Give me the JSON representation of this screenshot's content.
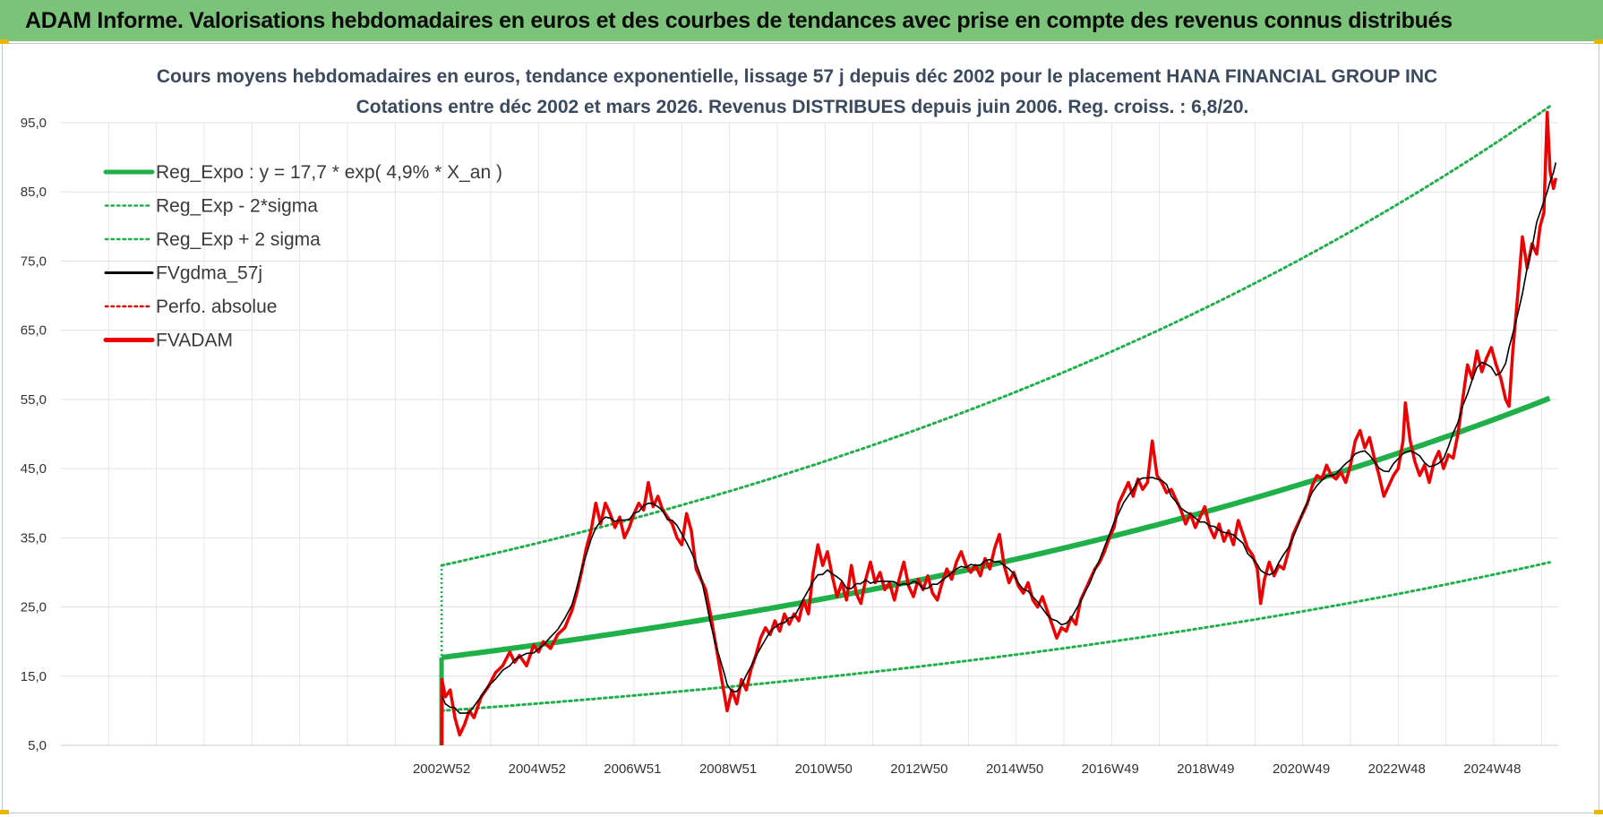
{
  "header": {
    "title": "ADAM Informe. Valorisations hebdomadaires en euros et des courbes de tendances avec prise en compte des revenus connus distribués"
  },
  "colors": {
    "header_bg": "#7cc37a",
    "reg_expo": "#1fb04a",
    "sigma": "#1fb04a",
    "fvgdma": "#000000",
    "perfo": "#e00000",
    "fvadam": "#ee0000"
  },
  "chart_data": {
    "type": "line",
    "title_line1": "Cours moyens hebdomadaires en euros, tendance exponentielle, lissage 57 j depuis déc 2002 pour le placement HANA FINANCIAL GROUP INC",
    "title_line2": "Cotations entre déc 2002 et mars 2026.  Revenus DISTRIBUES depuis juin 2006. Reg. croiss. : 6,8/20.",
    "ylim": [
      5,
      95
    ],
    "yticks": [
      "95,0",
      "85,0",
      "75,0",
      "65,0",
      "55,0",
      "45,0",
      "35,0",
      "25,0",
      "15,0",
      "5,0"
    ],
    "xticks": [
      "2002W52",
      "2004W52",
      "2006W51",
      "2008W51",
      "2010W50",
      "2012W50",
      "2014W50",
      "2016W49",
      "2018W49",
      "2020W49",
      "2022W48",
      "2024W48"
    ],
    "grid": true,
    "legend_position": "top-left",
    "legend": [
      {
        "label": "Reg_Expo : y = 17,7 * exp( 4,9% *  X_an )",
        "style": "solid-thick",
        "color": "#1fb04a"
      },
      {
        "label": "Reg_Exp - 2*sigma",
        "style": "dotted",
        "color": "#1fb04a"
      },
      {
        "label": "Reg_Exp + 2 sigma",
        "style": "dotted",
        "color": "#1fb04a"
      },
      {
        "label": "FVgdma_57j",
        "style": "solid",
        "color": "#000000"
      },
      {
        "label": "Perfo. absolue",
        "style": "dotted",
        "color": "#e00000"
      },
      {
        "label": "FVADAM",
        "style": "solid-thick",
        "color": "#ee0000"
      }
    ],
    "regression": {
      "a": 17.7,
      "rate": 0.049,
      "start_year": 2002.97,
      "end_year": 2026.2
    },
    "band_upper": {
      "start": 31.0,
      "end": 97.5
    },
    "band_lower": {
      "start": 10.0,
      "end": 31.5
    },
    "x_range": [
      1995.0,
      2026.35
    ],
    "fvadam": [
      [
        2002.97,
        5.0
      ],
      [
        2002.98,
        14.5
      ],
      [
        2003.05,
        12.0
      ],
      [
        2003.15,
        13.0
      ],
      [
        2003.25,
        9.0
      ],
      [
        2003.35,
        6.5
      ],
      [
        2003.45,
        8.0
      ],
      [
        2003.55,
        10.0
      ],
      [
        2003.65,
        9.0
      ],
      [
        2003.8,
        12.0
      ],
      [
        2003.95,
        13.5
      ],
      [
        2004.1,
        15.5
      ],
      [
        2004.25,
        16.5
      ],
      [
        2004.4,
        18.5
      ],
      [
        2004.5,
        17.0
      ],
      [
        2004.6,
        18.0
      ],
      [
        2004.75,
        16.5
      ],
      [
        2004.9,
        19.5
      ],
      [
        2005.0,
        18.5
      ],
      [
        2005.1,
        20.0
      ],
      [
        2005.25,
        19.0
      ],
      [
        2005.4,
        21.0
      ],
      [
        2005.55,
        22.0
      ],
      [
        2005.7,
        24.5
      ],
      [
        2005.8,
        27.0
      ],
      [
        2005.9,
        30.0
      ],
      [
        2006.0,
        33.5
      ],
      [
        2006.1,
        36.0
      ],
      [
        2006.2,
        40.0
      ],
      [
        2006.3,
        37.0
      ],
      [
        2006.4,
        40.0
      ],
      [
        2006.5,
        38.5
      ],
      [
        2006.6,
        36.5
      ],
      [
        2006.7,
        38.0
      ],
      [
        2006.8,
        35.0
      ],
      [
        2006.9,
        36.5
      ],
      [
        2007.0,
        38.5
      ],
      [
        2007.1,
        40.0
      ],
      [
        2007.2,
        39.0
      ],
      [
        2007.3,
        43.0
      ],
      [
        2007.4,
        39.5
      ],
      [
        2007.5,
        41.0
      ],
      [
        2007.6,
        39.0
      ],
      [
        2007.7,
        38.0
      ],
      [
        2007.8,
        37.0
      ],
      [
        2007.9,
        35.0
      ],
      [
        2008.0,
        34.0
      ],
      [
        2008.1,
        38.5
      ],
      [
        2008.2,
        36.0
      ],
      [
        2008.3,
        30.5
      ],
      [
        2008.4,
        29.0
      ],
      [
        2008.5,
        27.5
      ],
      [
        2008.6,
        24.0
      ],
      [
        2008.7,
        20.0
      ],
      [
        2008.8,
        16.0
      ],
      [
        2008.9,
        12.0
      ],
      [
        2008.95,
        10.0
      ],
      [
        2009.05,
        13.0
      ],
      [
        2009.15,
        11.0
      ],
      [
        2009.25,
        14.5
      ],
      [
        2009.35,
        13.0
      ],
      [
        2009.45,
        16.0
      ],
      [
        2009.55,
        18.0
      ],
      [
        2009.65,
        20.5
      ],
      [
        2009.75,
        22.0
      ],
      [
        2009.85,
        21.0
      ],
      [
        2009.95,
        23.0
      ],
      [
        2010.05,
        21.5
      ],
      [
        2010.15,
        24.0
      ],
      [
        2010.25,
        22.5
      ],
      [
        2010.35,
        24.0
      ],
      [
        2010.45,
        23.0
      ],
      [
        2010.55,
        26.0
      ],
      [
        2010.65,
        24.0
      ],
      [
        2010.75,
        30.0
      ],
      [
        2010.85,
        34.0
      ],
      [
        2010.95,
        31.0
      ],
      [
        2011.05,
        33.0
      ],
      [
        2011.15,
        29.5
      ],
      [
        2011.25,
        26.5
      ],
      [
        2011.35,
        28.5
      ],
      [
        2011.45,
        26.0
      ],
      [
        2011.55,
        31.0
      ],
      [
        2011.65,
        27.0
      ],
      [
        2011.75,
        25.5
      ],
      [
        2011.85,
        29.0
      ],
      [
        2011.95,
        31.5
      ],
      [
        2012.05,
        28.5
      ],
      [
        2012.15,
        30.0
      ],
      [
        2012.25,
        27.5
      ],
      [
        2012.35,
        28.5
      ],
      [
        2012.45,
        26.0
      ],
      [
        2012.55,
        29.0
      ],
      [
        2012.65,
        31.5
      ],
      [
        2012.75,
        28.0
      ],
      [
        2012.85,
        26.5
      ],
      [
        2012.95,
        29.0
      ],
      [
        2013.05,
        27.5
      ],
      [
        2013.15,
        29.5
      ],
      [
        2013.25,
        27.0
      ],
      [
        2013.35,
        26.0
      ],
      [
        2013.45,
        28.5
      ],
      [
        2013.55,
        30.5
      ],
      [
        2013.65,
        29.0
      ],
      [
        2013.75,
        31.5
      ],
      [
        2013.85,
        33.0
      ],
      [
        2013.95,
        31.0
      ],
      [
        2014.05,
        30.0
      ],
      [
        2014.15,
        31.0
      ],
      [
        2014.25,
        29.5
      ],
      [
        2014.35,
        32.0
      ],
      [
        2014.45,
        30.5
      ],
      [
        2014.55,
        33.5
      ],
      [
        2014.65,
        35.5
      ],
      [
        2014.75,
        31.0
      ],
      [
        2014.85,
        28.5
      ],
      [
        2014.95,
        30.0
      ],
      [
        2015.05,
        28.0
      ],
      [
        2015.15,
        27.0
      ],
      [
        2015.25,
        28.5
      ],
      [
        2015.35,
        26.0
      ],
      [
        2015.45,
        25.0
      ],
      [
        2015.55,
        26.5
      ],
      [
        2015.65,
        24.5
      ],
      [
        2015.75,
        22.5
      ],
      [
        2015.85,
        20.5
      ],
      [
        2015.95,
        22.0
      ],
      [
        2016.05,
        21.5
      ],
      [
        2016.15,
        23.5
      ],
      [
        2016.25,
        22.5
      ],
      [
        2016.35,
        26.0
      ],
      [
        2016.45,
        27.5
      ],
      [
        2016.55,
        29.0
      ],
      [
        2016.65,
        30.5
      ],
      [
        2016.75,
        31.5
      ],
      [
        2016.85,
        33.0
      ],
      [
        2016.95,
        35.0
      ],
      [
        2017.05,
        36.5
      ],
      [
        2017.15,
        40.0
      ],
      [
        2017.25,
        41.5
      ],
      [
        2017.35,
        43.0
      ],
      [
        2017.45,
        41.0
      ],
      [
        2017.55,
        43.5
      ],
      [
        2017.65,
        42.0
      ],
      [
        2017.75,
        43.0
      ],
      [
        2017.85,
        49.0
      ],
      [
        2017.95,
        44.0
      ],
      [
        2018.05,
        43.0
      ],
      [
        2018.15,
        41.5
      ],
      [
        2018.25,
        42.0
      ],
      [
        2018.35,
        40.5
      ],
      [
        2018.45,
        39.0
      ],
      [
        2018.55,
        37.0
      ],
      [
        2018.65,
        38.5
      ],
      [
        2018.75,
        36.5
      ],
      [
        2018.85,
        38.0
      ],
      [
        2018.95,
        39.5
      ],
      [
        2019.05,
        36.5
      ],
      [
        2019.15,
        35.0
      ],
      [
        2019.25,
        37.0
      ],
      [
        2019.35,
        34.5
      ],
      [
        2019.45,
        36.0
      ],
      [
        2019.55,
        34.0
      ],
      [
        2019.65,
        37.5
      ],
      [
        2019.75,
        35.5
      ],
      [
        2019.85,
        33.5
      ],
      [
        2019.95,
        32.5
      ],
      [
        2020.05,
        30.5
      ],
      [
        2020.12,
        25.5
      ],
      [
        2020.2,
        29.0
      ],
      [
        2020.3,
        31.5
      ],
      [
        2020.4,
        29.5
      ],
      [
        2020.5,
        31.0
      ],
      [
        2020.6,
        30.5
      ],
      [
        2020.7,
        33.0
      ],
      [
        2020.8,
        35.5
      ],
      [
        2020.9,
        37.0
      ],
      [
        2021.0,
        38.5
      ],
      [
        2021.1,
        40.0
      ],
      [
        2021.2,
        42.5
      ],
      [
        2021.3,
        44.0
      ],
      [
        2021.4,
        43.5
      ],
      [
        2021.5,
        45.5
      ],
      [
        2021.6,
        44.0
      ],
      [
        2021.7,
        43.5
      ],
      [
        2021.8,
        44.5
      ],
      [
        2021.9,
        43.0
      ],
      [
        2022.0,
        45.5
      ],
      [
        2022.1,
        49.0
      ],
      [
        2022.2,
        50.5
      ],
      [
        2022.3,
        48.0
      ],
      [
        2022.4,
        49.5
      ],
      [
        2022.5,
        46.5
      ],
      [
        2022.6,
        44.0
      ],
      [
        2022.7,
        41.0
      ],
      [
        2022.8,
        42.5
      ],
      [
        2022.9,
        44.0
      ],
      [
        2023.0,
        45.0
      ],
      [
        2023.1,
        49.0
      ],
      [
        2023.15,
        54.5
      ],
      [
        2023.25,
        49.0
      ],
      [
        2023.35,
        46.0
      ],
      [
        2023.45,
        44.0
      ],
      [
        2023.55,
        45.5
      ],
      [
        2023.65,
        43.0
      ],
      [
        2023.75,
        46.0
      ],
      [
        2023.85,
        47.5
      ],
      [
        2023.95,
        45.0
      ],
      [
        2024.05,
        47.0
      ],
      [
        2024.15,
        46.5
      ],
      [
        2024.25,
        50.0
      ],
      [
        2024.35,
        55.0
      ],
      [
        2024.45,
        60.0
      ],
      [
        2024.55,
        58.0
      ],
      [
        2024.65,
        62.0
      ],
      [
        2024.75,
        59.0
      ],
      [
        2024.85,
        61.0
      ],
      [
        2024.95,
        62.5
      ],
      [
        2025.05,
        60.0
      ],
      [
        2025.15,
        58.0
      ],
      [
        2025.25,
        55.0
      ],
      [
        2025.32,
        54.0
      ],
      [
        2025.4,
        62.0
      ],
      [
        2025.5,
        70.0
      ],
      [
        2025.6,
        78.5
      ],
      [
        2025.7,
        74.0
      ],
      [
        2025.8,
        77.5
      ],
      [
        2025.9,
        76.0
      ],
      [
        2025.97,
        80.0
      ],
      [
        2026.05,
        82.0
      ],
      [
        2026.12,
        96.5
      ],
      [
        2026.18,
        88.0
      ],
      [
        2026.25,
        85.5
      ],
      [
        2026.3,
        87.0
      ]
    ]
  }
}
